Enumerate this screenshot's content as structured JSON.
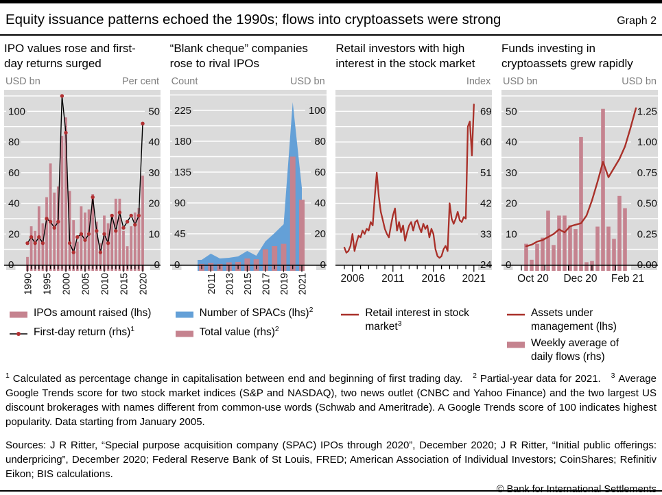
{
  "header": {
    "title": "Equity issuance patterns echoed the 1990s; flows into cryptoassets were strong",
    "graph_label": "Graph 2"
  },
  "colors": {
    "plot_bg": "#dbdbdb",
    "gridline": "#ffffff",
    "bar_pink": "#c5838f",
    "area_blue": "#64a0d7",
    "line_red": "#a93029",
    "line_black": "#000000",
    "dot_red": "#b23032"
  },
  "panels": [
    {
      "title_lines": [
        "IPO values rose and first-",
        "day returns surged"
      ],
      "unit_left": "USD bn",
      "unit_right": "Per cent",
      "legend": [
        {
          "swatch": "bar-pink",
          "lines": [
            "IPOs amount raised (lhs)"
          ],
          "sup": ""
        },
        {
          "swatch": "line-black-dot",
          "lines": [
            "First-day return (rhs)"
          ],
          "sup": "1"
        }
      ]
    },
    {
      "title_lines": [
        "“Blank cheque” companies",
        "rose to rival IPOs"
      ],
      "unit_left": "Count",
      "unit_right": "USD bn",
      "legend": [
        {
          "swatch": "area-blue",
          "lines": [
            "Number of SPACs (lhs)"
          ],
          "sup": "2"
        },
        {
          "swatch": "bar-pink",
          "lines": [
            "Total value (rhs)"
          ],
          "sup": "2"
        }
      ]
    },
    {
      "title_lines": [
        "Retail investors with high",
        "interest in the stock market"
      ],
      "unit_left": "",
      "unit_right": "Index",
      "legend": [
        {
          "swatch": "line-red",
          "lines": [
            "Retail interest in stock",
            "market"
          ],
          "sup": "3"
        }
      ]
    },
    {
      "title_lines": [
        "Funds investing in",
        "cryptoassets grew rapidly"
      ],
      "unit_left": "USD bn",
      "unit_right": "USD bn",
      "legend": [
        {
          "swatch": "line-red",
          "lines": [
            "Assets under",
            "management (lhs)"
          ],
          "sup": ""
        },
        {
          "swatch": "bar-pink",
          "lines": [
            "Weekly average of",
            "daily flows (rhs)"
          ],
          "sup": ""
        }
      ]
    }
  ],
  "chart_data": [
    {
      "type": "bar+line",
      "title": "IPO values rose and first-day returns surged",
      "x_start": 1990,
      "x_end": 2020,
      "x_ticks": [
        1990,
        1995,
        2000,
        2005,
        2010,
        2015,
        2020
      ],
      "left_axis": {
        "label": "USD bn",
        "ticks": [
          0,
          20,
          40,
          60,
          80,
          100
        ],
        "max": 114,
        "grid_step": 10
      },
      "right_axis": {
        "label": "Per cent",
        "ticks": [
          0,
          10,
          20,
          30,
          40,
          50
        ],
        "max": 57
      },
      "bars": {
        "name": "IPOs amount raised (lhs)",
        "unit": "USD bn",
        "values": [
          5,
          25,
          22,
          38,
          27,
          44,
          66,
          47,
          51,
          84,
          96,
          48,
          29,
          15,
          38,
          34,
          36,
          46,
          28,
          14,
          32,
          27,
          31,
          43,
          43,
          22,
          12,
          25,
          34,
          37,
          58
        ]
      },
      "line": {
        "name": "First-day return (rhs)",
        "unit": "Per cent",
        "values": [
          7,
          9,
          7,
          9,
          7,
          15,
          14,
          12,
          14,
          55,
          43,
          7,
          4,
          9,
          10,
          8,
          10,
          22,
          11,
          4,
          10,
          7,
          16,
          11,
          17,
          12,
          14,
          16,
          13,
          16,
          46
        ]
      }
    },
    {
      "type": "area+bar",
      "title": "“Blank cheque” companies rose to rival IPOs",
      "x_start": 2010,
      "x_end": 2021,
      "x_ticks": [
        2011,
        2013,
        2015,
        2017,
        2019,
        2021
      ],
      "left_axis": {
        "label": "Count",
        "ticks": [
          0,
          45,
          90,
          135,
          180,
          225
        ],
        "max": 255,
        "grid_step": 22.5
      },
      "right_axis": {
        "label": "USD bn",
        "ticks": [
          0,
          20,
          40,
          60,
          80,
          100
        ],
        "max": 113.3
      },
      "area": {
        "name": "Number of SPACs (lhs)",
        "unit": "Count",
        "values": [
          7,
          16,
          9,
          10,
          12,
          20,
          13,
          34,
          46,
          59,
          237,
          112
        ]
      },
      "bars": {
        "name": "Total value (rhs)",
        "unit": "USD bn",
        "values": [
          0.5,
          1,
          0.5,
          1.5,
          1.8,
          4,
          3.5,
          10,
          12,
          13.5,
          70,
          42
        ]
      }
    },
    {
      "type": "line",
      "title": "Retail investors with high interest in the stock market",
      "x_start": 2005,
      "x_step": 0.25,
      "x_ticks": [
        2006,
        2011,
        2016,
        2021
      ],
      "minor_tick_years": [
        2005,
        2021
      ],
      "right_axis": {
        "label": "Index",
        "ticks": [
          24,
          33,
          42,
          51,
          60,
          69
        ],
        "min": 24,
        "max": 75.3,
        "grid_step": 4.5
      },
      "line": {
        "name": "Retail interest in stock market",
        "unit": "Index",
        "values": [
          29,
          27.5,
          28,
          29.5,
          33,
          28,
          30.5,
          32.5,
          32,
          34,
          33,
          34.5,
          34,
          36.5,
          35.5,
          44,
          51,
          44,
          39.5,
          37,
          34.5,
          33,
          32,
          35.5,
          38.5,
          40.5,
          34,
          36.5,
          33.5,
          35.5,
          31,
          33.5,
          35.5,
          36.5,
          34,
          36.5,
          37,
          35,
          33.5,
          36,
          34.5,
          35.5,
          32,
          34.5,
          33,
          28.5,
          26.5,
          26,
          26.5,
          28.5,
          29.5,
          28,
          42,
          37.5,
          36,
          37.5,
          39.5,
          37,
          36.5,
          38,
          37.5,
          64.5,
          66,
          56,
          71
        ]
      }
    },
    {
      "type": "bar+line",
      "title": "Funds investing in cryptoassets grew rapidly",
      "x_tick_labels": [
        "Oct 20",
        "Dec 20",
        "Feb 21"
      ],
      "left_axis": {
        "label": "USD bn",
        "ticks": [
          0,
          10,
          20,
          30,
          40,
          50
        ],
        "max": 57,
        "grid_step": 5
      },
      "right_axis": {
        "label": "USD bn",
        "ticks": [
          "0.00",
          "0.25",
          "0.50",
          "0.75",
          "1.00",
          "1.25"
        ],
        "max": 1.425
      },
      "line": {
        "name": "Assets under management (lhs)",
        "unit": "USD bn",
        "values": [
          6,
          6.5,
          7.5,
          8,
          9,
          10,
          11.5,
          10.5,
          12.5,
          13,
          13.5,
          16,
          21,
          27,
          33.5,
          28.5,
          31.5,
          34.5,
          38.5,
          44.5,
          51
        ]
      },
      "bars": {
        "name": "Weekly average of daily flows (rhs)",
        "unit": "USD bn",
        "values": [
          0.17,
          0.04,
          0.17,
          0.22,
          0.44,
          0.16,
          0.4,
          0.4,
          0.32,
          0.29,
          1.04,
          0.02,
          0.03,
          0.31,
          1.27,
          0.31,
          0.21,
          0.56,
          0.46
        ]
      }
    }
  ],
  "footnotes": [
    {
      "marker": "1",
      "text": "Calculated as percentage change in capitalisation between end and beginning of first trading day."
    },
    {
      "marker": "2",
      "text": "Partial-year data for 2021."
    },
    {
      "marker": "3",
      "text": "Average Google Trends score for two stock market indices (S&P and NASDAQ), two news outlet (CNBC and Yahoo Finance) and the two largest US discount brokerages with names different from common-use words (Schwab and Ameritrade). A Google Trends score of 100 indicates highest popularity. Data starting from January 2005."
    }
  ],
  "sources": "Sources: J R Ritter, “Special purpose acquisition company (SPAC) IPOs through 2020”, December 2020; J R Ritter, “Initial public offerings: underpricing”, December 2020; Federal Reserve Bank of St Louis, FRED; American Association of Individual Investors; CoinShares; Refinitiv Eikon; BIS calculations.",
  "copyright": "© Bank for International Settlements"
}
